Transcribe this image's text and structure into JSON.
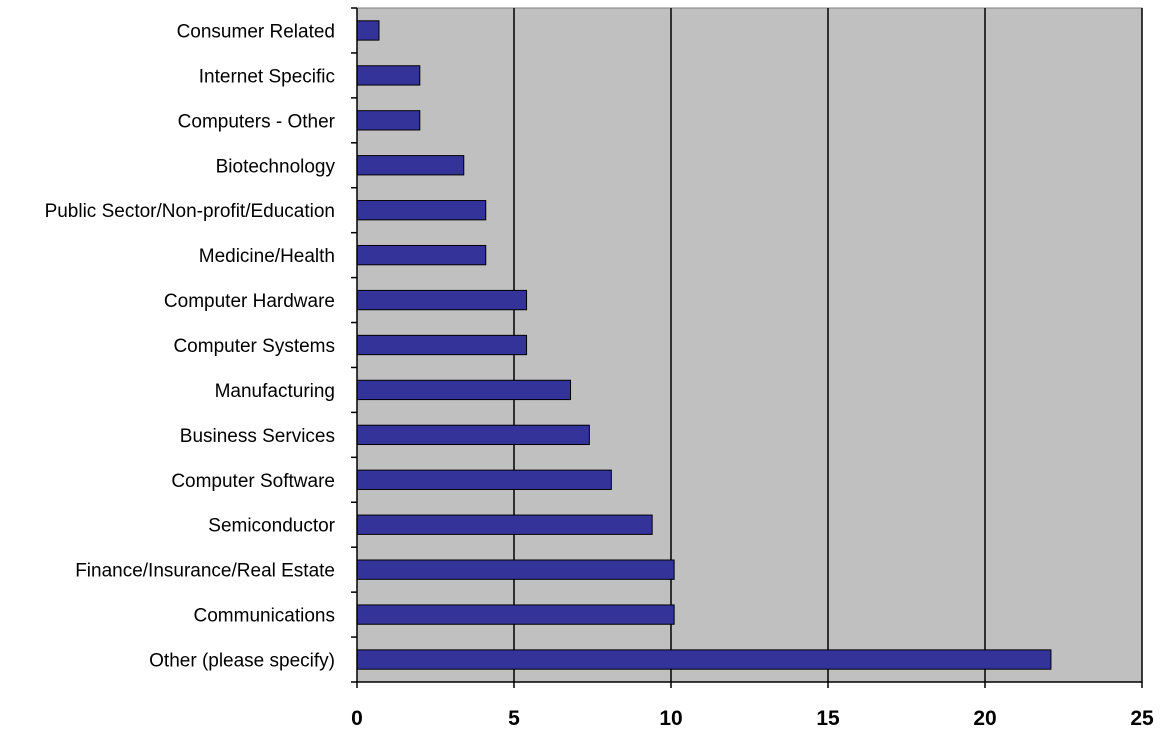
{
  "chart_data": {
    "type": "bar",
    "orientation": "horizontal",
    "title": "",
    "xlabel": "",
    "ylabel": "",
    "categories": [
      "Consumer Related",
      "Internet Specific",
      "Computers - Other",
      "Biotechnology",
      "Public Sector/Non-profit/Education",
      "Medicine/Health",
      "Computer Hardware",
      "Computer Systems",
      "Manufacturing",
      "Business Services",
      "Computer Software",
      "Semiconductor",
      "Finance/Insurance/Real Estate",
      "Communications",
      "Other (please specify)"
    ],
    "values": [
      0.7,
      2.0,
      2.0,
      3.4,
      4.1,
      4.1,
      5.4,
      5.4,
      6.8,
      7.4,
      8.1,
      9.4,
      10.1,
      10.1,
      22.1
    ],
    "xlim": [
      0,
      25
    ],
    "xticks": [
      "0",
      "5",
      "10",
      "15",
      "20",
      "25"
    ],
    "xtick_values": [
      0,
      5,
      10,
      15,
      20,
      25
    ],
    "grid": "vertical major gridlines",
    "legend": "none",
    "colors": {
      "bar_fill": "#33339a",
      "bar_stroke": "#000000",
      "plot_background": "#c0c0c0",
      "gridline": "#000000"
    }
  }
}
